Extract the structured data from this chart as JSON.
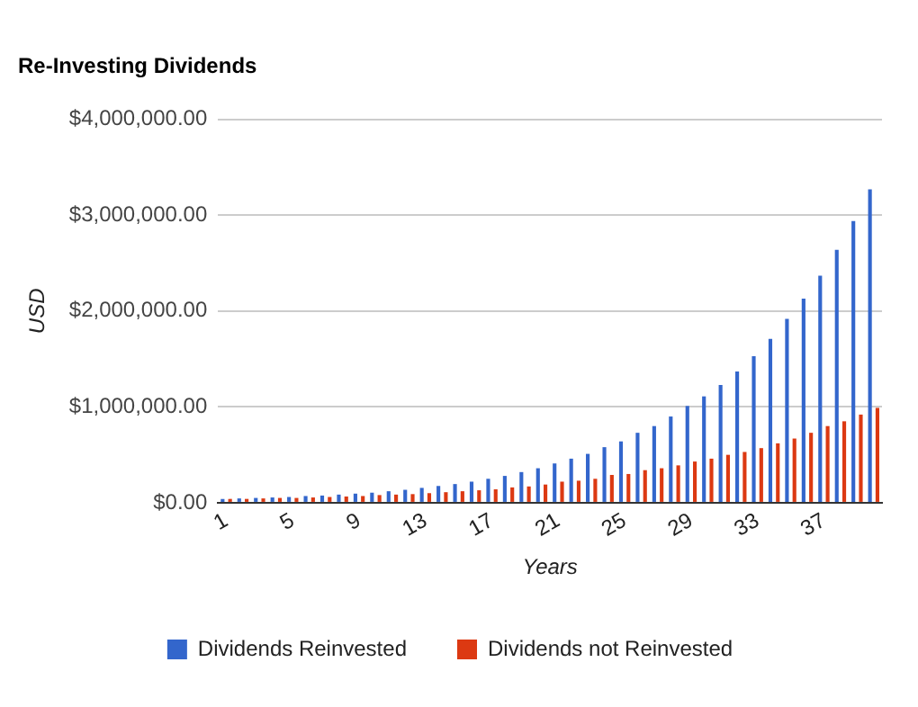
{
  "chart_data": {
    "type": "bar",
    "title": "Re-Investing Dividends",
    "xlabel": "Years",
    "ylabel": "USD",
    "categories": [
      "1",
      null,
      null,
      null,
      "5",
      null,
      null,
      null,
      "9",
      null,
      null,
      null,
      "13",
      null,
      null,
      null,
      "17",
      null,
      null,
      null,
      "21",
      null,
      null,
      null,
      "25",
      null,
      null,
      null,
      "29",
      null,
      null,
      null,
      "33",
      null,
      null,
      null,
      "37",
      null,
      null,
      null
    ],
    "series": [
      {
        "name": "Dividends Reinvested",
        "color": "#3366cc",
        "values": [
          40000,
          45000,
          50000,
          55000,
          60000,
          70000,
          75000,
          85000,
          95000,
          105000,
          120000,
          135000,
          155000,
          175000,
          195000,
          220000,
          250000,
          280000,
          320000,
          360000,
          410000,
          460000,
          510000,
          580000,
          640000,
          730000,
          800000,
          900000,
          1010000,
          1110000,
          1230000,
          1370000,
          1530000,
          1710000,
          1920000,
          2130000,
          2370000,
          2640000,
          2940000,
          3270000
        ]
      },
      {
        "name": "Dividends not Reinvested",
        "color": "#dc3912",
        "values": [
          40000,
          40000,
          45000,
          50000,
          50000,
          55000,
          60000,
          65000,
          70000,
          80000,
          85000,
          90000,
          100000,
          110000,
          120000,
          130000,
          140000,
          160000,
          170000,
          190000,
          220000,
          230000,
          250000,
          290000,
          300000,
          340000,
          360000,
          390000,
          430000,
          460000,
          500000,
          530000,
          570000,
          620000,
          670000,
          730000,
          800000,
          850000,
          920000,
          990000
        ]
      }
    ],
    "ylim": [
      0,
      4000000
    ],
    "yticks": [
      {
        "value": 0,
        "label": "$0.00"
      },
      {
        "value": 1000000,
        "label": "$1,000,000.00"
      },
      {
        "value": 2000000,
        "label": "$2,000,000.00"
      },
      {
        "value": 3000000,
        "label": "$3,000,000.00"
      },
      {
        "value": 4000000,
        "label": "$4,000,000.00"
      }
    ],
    "grid": "y",
    "legend": "bottom"
  }
}
